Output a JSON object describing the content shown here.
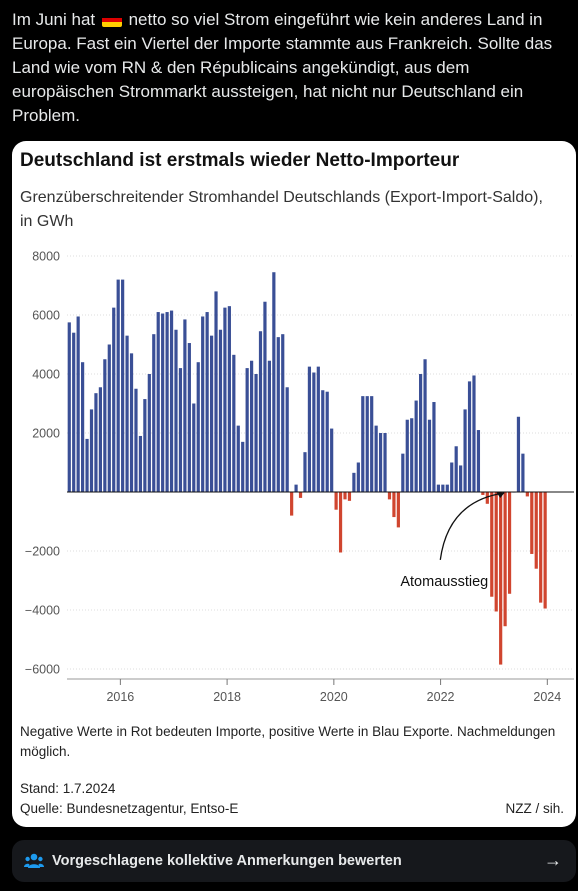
{
  "tweet": {
    "text_before_flag": "Im Juni hat ",
    "text_after_flag": " netto so viel Strom eingeführt wie kein anderes Land in Europa. Fast ein Viertel der Importe stammte aus Frankreich. Sollte das Land wie vom RN & den Républicains angekündigt, aus dem europäischen Strommarkt aussteigen, hat nicht nur Deutschland ein Problem.",
    "flag_icon": "germany-flag-icon",
    "flag_colors": [
      "#000000",
      "#dd0000",
      "#ffce00"
    ]
  },
  "card": {
    "title": "Deutschland ist erstmals wieder Netto-Importeur",
    "subtitle": "Grenzüberschreitender Stromhandel Deutschlands (Export-Import-Saldo), in GWh",
    "note": "Negative Werte in Rot bedeuten Importe, positive Werte in Blau Exporte. Nachmeldungen möglich.",
    "stand": "Stand: 1.7.2024",
    "source": "Quelle: Bundesnetzagentur, Entso-E",
    "credit": "NZZ / sih."
  },
  "chart_data": {
    "type": "bar",
    "title": "Deutschland ist erstmals wieder Netto-Importeur",
    "ylabel": "",
    "xlabel": "",
    "ylim": [
      -6000,
      8000
    ],
    "yticks": [
      8000,
      6000,
      4000,
      2000,
      -2000,
      -4000,
      -6000
    ],
    "ytick_labels": [
      "8000",
      "6000",
      "4000",
      "2000",
      "−2000",
      "−4000",
      "−6000"
    ],
    "xticks": [
      "2016",
      "2018",
      "2020",
      "2022",
      "2024"
    ],
    "grid": true,
    "x_start": "2015-01",
    "x_end": "2024-06",
    "colors": {
      "positive": "#3a4f96",
      "negative": "#d0452f"
    },
    "annotation": {
      "text": "Atomausstieg",
      "points_to": "2023-04"
    },
    "series": [
      {
        "values": [
          5750,
          5400,
          5950,
          4400,
          1800,
          2800,
          3350,
          3550,
          4500,
          5000,
          6250,
          7200,
          7200,
          5300,
          4700,
          3500,
          1900,
          3150,
          4000,
          5350,
          6100,
          6050,
          6100,
          6150,
          5500,
          4200,
          5850,
          5050,
          3000,
          4400,
          5950,
          6100,
          5300,
          6800,
          5500,
          6250,
          6300,
          4650,
          2250,
          1700,
          4200,
          4450,
          4000,
          5450,
          6450,
          4450,
          7450,
          5250,
          5350,
          3550,
          -800,
          250,
          -200,
          1350,
          4250,
          4050,
          4250,
          3450,
          3400,
          2150,
          -600,
          -2050,
          -250,
          -300,
          650,
          1000,
          3250,
          3250,
          3250,
          2250,
          2000,
          2000,
          -250,
          -850,
          -1200,
          1300,
          2450,
          2500,
          3100,
          4000,
          4500,
          2450,
          3050,
          250,
          250,
          250,
          1000,
          1550,
          900,
          2800,
          3750,
          3950,
          2100,
          -100,
          -400,
          -3550,
          -4050,
          -5850,
          -4550,
          -3450,
          0,
          2550,
          1300,
          -150,
          -2100,
          -2600,
          -3750,
          -3950
        ]
      }
    ]
  },
  "community_notes": {
    "label": "Vorgeschlagene kollektive Anmerkungen bewerten",
    "icon": "people-icon",
    "arrow_icon": "arrow-right-icon"
  }
}
